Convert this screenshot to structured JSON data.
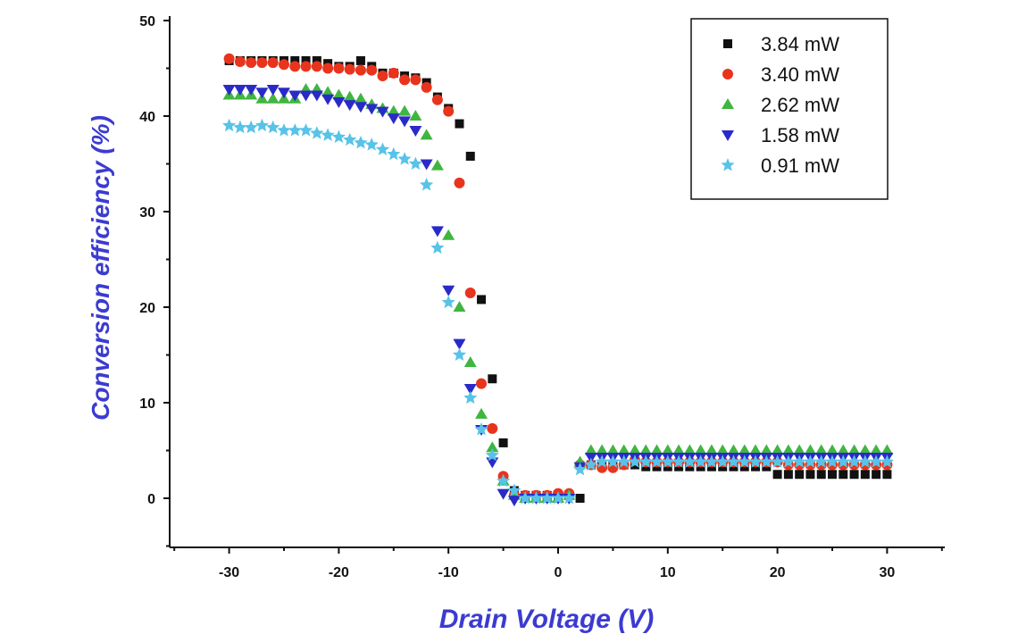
{
  "chart_data": {
    "type": "scatter",
    "title": "",
    "xlabel": "Drain Voltage (V)",
    "ylabel": "Conversion efficiency (%)",
    "xlim": [
      -35,
      35
    ],
    "ylim": [
      -5,
      50
    ],
    "xticks": [
      -30,
      -20,
      -10,
      0,
      10,
      20,
      30
    ],
    "yticks": [
      0,
      10,
      20,
      30,
      40,
      50
    ],
    "grid": false,
    "legend_position": "top-right",
    "series": [
      {
        "name": "3.84 mW",
        "marker": "square",
        "color": "#111111",
        "points": [
          [
            -30,
            45.8
          ],
          [
            -29,
            45.8
          ],
          [
            -28,
            45.8
          ],
          [
            -27,
            45.8
          ],
          [
            -26,
            45.8
          ],
          [
            -25,
            45.8
          ],
          [
            -24,
            45.8
          ],
          [
            -23,
            45.8
          ],
          [
            -22,
            45.8
          ],
          [
            -21,
            45.5
          ],
          [
            -20,
            45.2
          ],
          [
            -19,
            45.2
          ],
          [
            -18,
            45.8
          ],
          [
            -17,
            45.2
          ],
          [
            -16,
            44.5
          ],
          [
            -15,
            44.5
          ],
          [
            -14,
            44.2
          ],
          [
            -13,
            44.0
          ],
          [
            -12,
            43.5
          ],
          [
            -11,
            42.0
          ],
          [
            -10,
            40.8
          ],
          [
            -9,
            39.2
          ],
          [
            -8,
            35.8
          ],
          [
            -7,
            20.8
          ],
          [
            -6,
            12.5
          ],
          [
            -5,
            5.8
          ],
          [
            -4,
            0.8
          ],
          [
            -3,
            0.3
          ],
          [
            -2,
            0.3
          ],
          [
            -1,
            0.3
          ],
          [
            0,
            0.3
          ],
          [
            1,
            0.3
          ],
          [
            2,
            0.0
          ],
          [
            3,
            3.5
          ],
          [
            4,
            3.5
          ],
          [
            5,
            3.5
          ],
          [
            6,
            3.5
          ],
          [
            7,
            3.5
          ],
          [
            8,
            3.3
          ],
          [
            9,
            3.3
          ],
          [
            10,
            3.3
          ],
          [
            11,
            3.3
          ],
          [
            12,
            3.3
          ],
          [
            13,
            3.3
          ],
          [
            14,
            3.3
          ],
          [
            15,
            3.3
          ],
          [
            16,
            3.3
          ],
          [
            17,
            3.3
          ],
          [
            18,
            3.3
          ],
          [
            19,
            3.3
          ],
          [
            20,
            2.5
          ],
          [
            21,
            2.5
          ],
          [
            22,
            2.5
          ],
          [
            23,
            2.5
          ],
          [
            24,
            2.5
          ],
          [
            25,
            2.5
          ],
          [
            26,
            2.5
          ],
          [
            27,
            2.5
          ],
          [
            28,
            2.5
          ],
          [
            29,
            2.5
          ],
          [
            30,
            2.5
          ]
        ]
      },
      {
        "name": "3.40 mW",
        "marker": "circle",
        "color": "#e8341c",
        "points": [
          [
            -30,
            46.0
          ],
          [
            -29,
            45.7
          ],
          [
            -28,
            45.6
          ],
          [
            -27,
            45.6
          ],
          [
            -26,
            45.6
          ],
          [
            -25,
            45.4
          ],
          [
            -24,
            45.2
          ],
          [
            -23,
            45.2
          ],
          [
            -22,
            45.2
          ],
          [
            -21,
            45.0
          ],
          [
            -20,
            45.0
          ],
          [
            -19,
            44.9
          ],
          [
            -18,
            44.8
          ],
          [
            -17,
            44.8
          ],
          [
            -16,
            44.2
          ],
          [
            -15,
            44.5
          ],
          [
            -14,
            43.8
          ],
          [
            -13,
            43.8
          ],
          [
            -12,
            43.0
          ],
          [
            -11,
            41.7
          ],
          [
            -10,
            40.5
          ],
          [
            -9,
            33.0
          ],
          [
            -8,
            21.5
          ],
          [
            -7,
            12.0
          ],
          [
            -6,
            7.3
          ],
          [
            -5,
            2.3
          ],
          [
            -4,
            0.3
          ],
          [
            -3,
            0.3
          ],
          [
            -2,
            0.3
          ],
          [
            -1,
            0.3
          ],
          [
            0,
            0.5
          ],
          [
            1,
            0.5
          ],
          [
            2,
            3.5
          ],
          [
            3,
            3.5
          ],
          [
            4,
            3.2
          ],
          [
            5,
            3.2
          ],
          [
            6,
            3.5
          ],
          [
            7,
            4.0
          ],
          [
            8,
            3.8
          ],
          [
            9,
            3.8
          ],
          [
            10,
            3.8
          ],
          [
            11,
            3.8
          ],
          [
            12,
            3.8
          ],
          [
            13,
            3.8
          ],
          [
            14,
            3.8
          ],
          [
            15,
            3.8
          ],
          [
            16,
            3.8
          ],
          [
            17,
            3.8
          ],
          [
            18,
            3.8
          ],
          [
            19,
            3.8
          ],
          [
            20,
            3.8
          ],
          [
            21,
            3.5
          ],
          [
            22,
            3.5
          ],
          [
            23,
            3.5
          ],
          [
            24,
            3.5
          ],
          [
            25,
            3.5
          ],
          [
            26,
            3.5
          ],
          [
            27,
            3.5
          ],
          [
            28,
            3.5
          ],
          [
            29,
            3.5
          ],
          [
            30,
            3.5
          ]
        ]
      },
      {
        "name": "2.62 mW",
        "marker": "triangle-up",
        "color": "#3fb63f",
        "points": [
          [
            -30,
            42.2
          ],
          [
            -29,
            42.2
          ],
          [
            -28,
            42.2
          ],
          [
            -27,
            41.8
          ],
          [
            -26,
            41.8
          ],
          [
            -25,
            41.8
          ],
          [
            -24,
            41.8
          ],
          [
            -23,
            42.8
          ],
          [
            -22,
            42.8
          ],
          [
            -21,
            42.5
          ],
          [
            -20,
            42.2
          ],
          [
            -19,
            42.0
          ],
          [
            -18,
            41.8
          ],
          [
            -17,
            41.2
          ],
          [
            -16,
            40.8
          ],
          [
            -15,
            40.5
          ],
          [
            -14,
            40.5
          ],
          [
            -13,
            40.0
          ],
          [
            -12,
            38.0
          ],
          [
            -11,
            34.8
          ],
          [
            -10,
            27.5
          ],
          [
            -9,
            20.0
          ],
          [
            -8,
            14.2
          ],
          [
            -7,
            8.8
          ],
          [
            -6,
            5.3
          ],
          [
            -5,
            1.8
          ],
          [
            -4,
            0.3
          ],
          [
            -3,
            0.0
          ],
          [
            -2,
            0.0
          ],
          [
            -1,
            0.0
          ],
          [
            0,
            0.0
          ],
          [
            1,
            0.3
          ],
          [
            2,
            3.8
          ],
          [
            3,
            5.0
          ],
          [
            4,
            5.0
          ],
          [
            5,
            5.0
          ],
          [
            6,
            5.0
          ],
          [
            7,
            5.0
          ],
          [
            8,
            5.0
          ],
          [
            9,
            5.0
          ],
          [
            10,
            5.0
          ],
          [
            11,
            5.0
          ],
          [
            12,
            5.0
          ],
          [
            13,
            5.0
          ],
          [
            14,
            5.0
          ],
          [
            15,
            5.0
          ],
          [
            16,
            5.0
          ],
          [
            17,
            5.0
          ],
          [
            18,
            5.0
          ],
          [
            19,
            5.0
          ],
          [
            20,
            5.0
          ],
          [
            21,
            5.0
          ],
          [
            22,
            5.0
          ],
          [
            23,
            5.0
          ],
          [
            24,
            5.0
          ],
          [
            25,
            5.0
          ],
          [
            26,
            5.0
          ],
          [
            27,
            5.0
          ],
          [
            28,
            5.0
          ],
          [
            29,
            5.0
          ],
          [
            30,
            5.0
          ]
        ]
      },
      {
        "name": "1.58 mW",
        "marker": "triangle-down",
        "color": "#2a2ac8",
        "points": [
          [
            -30,
            42.8
          ],
          [
            -29,
            42.8
          ],
          [
            -28,
            42.8
          ],
          [
            -27,
            42.5
          ],
          [
            -26,
            42.8
          ],
          [
            -25,
            42.5
          ],
          [
            -24,
            42.2
          ],
          [
            -23,
            42.2
          ],
          [
            -22,
            42.2
          ],
          [
            -21,
            41.8
          ],
          [
            -20,
            41.5
          ],
          [
            -19,
            41.2
          ],
          [
            -18,
            41.0
          ],
          [
            -17,
            40.8
          ],
          [
            -16,
            40.5
          ],
          [
            -15,
            39.8
          ],
          [
            -14,
            39.5
          ],
          [
            -13,
            38.5
          ],
          [
            -12,
            35.0
          ],
          [
            -11,
            28.0
          ],
          [
            -10,
            21.8
          ],
          [
            -9,
            16.2
          ],
          [
            -8,
            11.5
          ],
          [
            -7,
            7.2
          ],
          [
            -6,
            3.8
          ],
          [
            -5,
            0.5
          ],
          [
            -4,
            -0.2
          ],
          [
            -3,
            0.0
          ],
          [
            -2,
            0.0
          ],
          [
            -1,
            0.0
          ],
          [
            0,
            0.0
          ],
          [
            1,
            0.0
          ],
          [
            2,
            3.3
          ],
          [
            3,
            4.3
          ],
          [
            4,
            4.3
          ],
          [
            5,
            4.3
          ],
          [
            6,
            4.3
          ],
          [
            7,
            4.3
          ],
          [
            8,
            4.3
          ],
          [
            9,
            4.3
          ],
          [
            10,
            4.3
          ],
          [
            11,
            4.3
          ],
          [
            12,
            4.3
          ],
          [
            13,
            4.3
          ],
          [
            14,
            4.3
          ],
          [
            15,
            4.3
          ],
          [
            16,
            4.3
          ],
          [
            17,
            4.3
          ],
          [
            18,
            4.3
          ],
          [
            19,
            4.3
          ],
          [
            20,
            4.3
          ],
          [
            21,
            4.3
          ],
          [
            22,
            4.3
          ],
          [
            23,
            4.3
          ],
          [
            24,
            4.3
          ],
          [
            25,
            4.3
          ],
          [
            26,
            4.3
          ],
          [
            27,
            4.3
          ],
          [
            28,
            4.3
          ],
          [
            29,
            4.3
          ],
          [
            30,
            4.3
          ]
        ]
      },
      {
        "name": "0.91 mW",
        "marker": "star",
        "color": "#58c3e8",
        "points": [
          [
            -30,
            39.0
          ],
          [
            -29,
            38.8
          ],
          [
            -28,
            38.8
          ],
          [
            -27,
            39.0
          ],
          [
            -26,
            38.8
          ],
          [
            -25,
            38.5
          ],
          [
            -24,
            38.5
          ],
          [
            -23,
            38.5
          ],
          [
            -22,
            38.2
          ],
          [
            -21,
            38.0
          ],
          [
            -20,
            37.8
          ],
          [
            -19,
            37.5
          ],
          [
            -18,
            37.2
          ],
          [
            -17,
            37.0
          ],
          [
            -16,
            36.5
          ],
          [
            -15,
            36.0
          ],
          [
            -14,
            35.5
          ],
          [
            -13,
            35.0
          ],
          [
            -12,
            32.8
          ],
          [
            -11,
            26.2
          ],
          [
            -10,
            20.5
          ],
          [
            -9,
            15.0
          ],
          [
            -8,
            10.5
          ],
          [
            -7,
            7.2
          ],
          [
            -6,
            4.5
          ],
          [
            -5,
            1.8
          ],
          [
            -4,
            0.8
          ],
          [
            -3,
            0.0
          ],
          [
            -2,
            0.0
          ],
          [
            -1,
            0.0
          ],
          [
            0,
            0.0
          ],
          [
            1,
            0.0
          ],
          [
            2,
            3.0
          ],
          [
            3,
            3.5
          ],
          [
            4,
            3.8
          ],
          [
            5,
            3.8
          ],
          [
            6,
            3.8
          ],
          [
            7,
            3.8
          ],
          [
            8,
            3.8
          ],
          [
            9,
            3.8
          ],
          [
            10,
            3.8
          ],
          [
            11,
            3.8
          ],
          [
            12,
            3.8
          ],
          [
            13,
            3.8
          ],
          [
            14,
            3.8
          ],
          [
            15,
            3.8
          ],
          [
            16,
            3.8
          ],
          [
            17,
            3.8
          ],
          [
            18,
            3.8
          ],
          [
            19,
            3.8
          ],
          [
            20,
            3.8
          ],
          [
            21,
            3.8
          ],
          [
            22,
            3.8
          ],
          [
            23,
            3.8
          ],
          [
            24,
            3.8
          ],
          [
            25,
            3.8
          ],
          [
            26,
            3.8
          ],
          [
            27,
            3.8
          ],
          [
            28,
            3.8
          ],
          [
            29,
            3.8
          ],
          [
            30,
            3.8
          ]
        ]
      }
    ]
  }
}
